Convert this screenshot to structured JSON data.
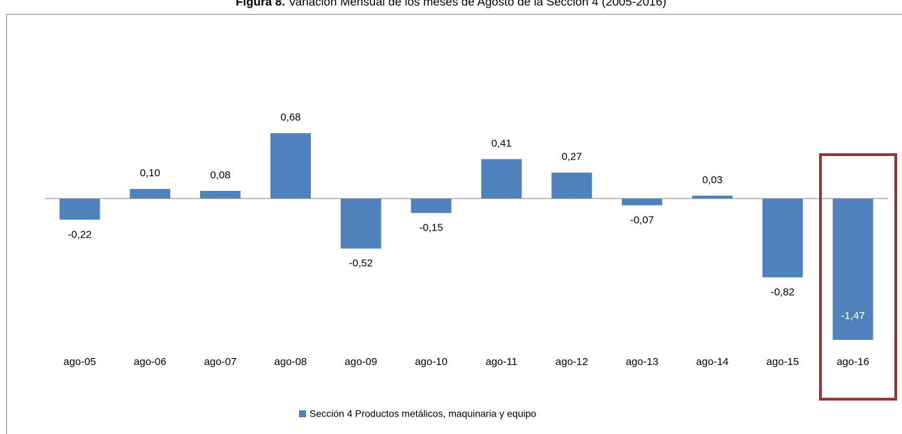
{
  "chart_data": {
    "type": "bar",
    "title_number": "Figura 8.",
    "title": "Variación Mensual de los meses de Agosto de la Sección 4 (2005-2016)",
    "categories": [
      "ago-05",
      "ago-06",
      "ago-07",
      "ago-08",
      "ago-09",
      "ago-10",
      "ago-11",
      "ago-12",
      "ago-13",
      "ago-14",
      "ago-15",
      "ago-16"
    ],
    "series": [
      {
        "name": "Sección 4 Productos metálicos, maquinaria y equipo",
        "color": "#4f81bd",
        "values": [
          -0.22,
          0.1,
          0.08,
          0.68,
          -0.52,
          -0.15,
          0.41,
          0.27,
          -0.07,
          0.03,
          -0.82,
          -1.47
        ],
        "value_labels": [
          "-0,22",
          "0,10",
          "0,08",
          "0,68",
          "-0,52",
          "-0,15",
          "0,41",
          "0,27",
          "-0,07",
          "0,03",
          "-0,82",
          "-1,47"
        ]
      }
    ],
    "ylim": [
      -1.5,
      1.5
    ],
    "legend": "bottom"
  }
}
